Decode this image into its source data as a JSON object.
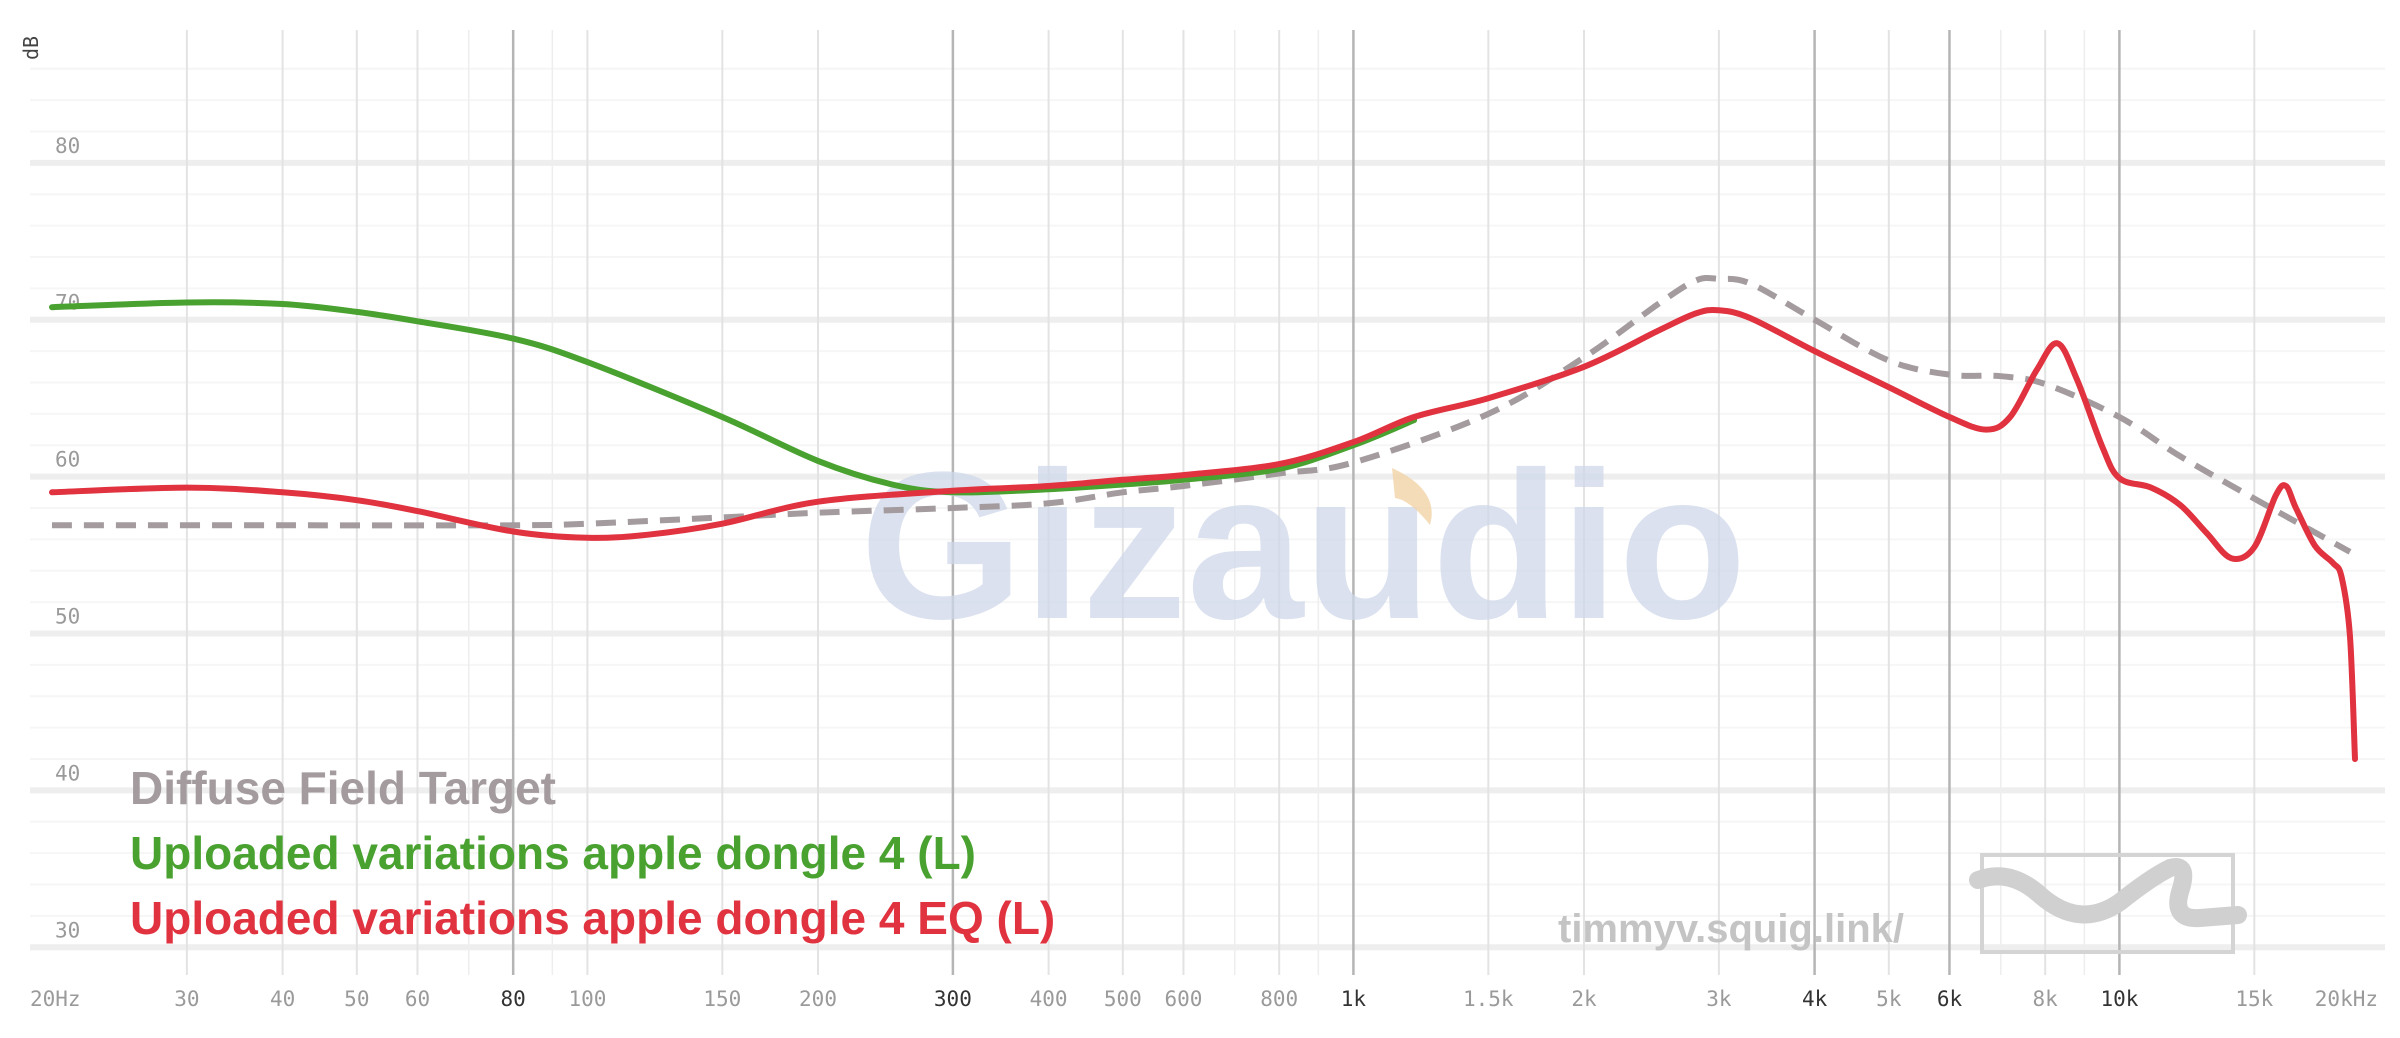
{
  "chart_data": {
    "type": "line",
    "ylabel": "dB",
    "x_scale": "log",
    "xlim": [
      20,
      20000
    ],
    "ylim": [
      29,
      87
    ],
    "yticks": [
      30,
      40,
      50,
      60,
      70,
      80
    ],
    "xticks": [
      {
        "value": 20,
        "label": "20Hz",
        "major": false
      },
      {
        "value": 30,
        "label": "30",
        "major": false
      },
      {
        "value": 40,
        "label": "40",
        "major": false
      },
      {
        "value": 50,
        "label": "50",
        "major": false
      },
      {
        "value": 60,
        "label": "60",
        "major": false
      },
      {
        "value": 80,
        "label": "80",
        "major": true
      },
      {
        "value": 100,
        "label": "100",
        "major": false
      },
      {
        "value": 150,
        "label": "150",
        "major": false
      },
      {
        "value": 200,
        "label": "200",
        "major": false
      },
      {
        "value": 300,
        "label": "300",
        "major": true
      },
      {
        "value": 400,
        "label": "400",
        "major": false
      },
      {
        "value": 500,
        "label": "500",
        "major": false
      },
      {
        "value": 600,
        "label": "600",
        "major": false
      },
      {
        "value": 800,
        "label": "800",
        "major": false
      },
      {
        "value": 1000,
        "label": "1k",
        "major": true
      },
      {
        "value": 1500,
        "label": "1.5k",
        "major": false
      },
      {
        "value": 2000,
        "label": "2k",
        "major": false
      },
      {
        "value": 3000,
        "label": "3k",
        "major": false
      },
      {
        "value": 4000,
        "label": "4k",
        "major": true
      },
      {
        "value": 5000,
        "label": "5k",
        "major": false
      },
      {
        "value": 6000,
        "label": "6k",
        "major": true
      },
      {
        "value": 8000,
        "label": "8k",
        "major": false
      },
      {
        "value": 10000,
        "label": "10k",
        "major": true
      },
      {
        "value": 15000,
        "label": "15k",
        "major": false
      },
      {
        "value": 20000,
        "label": "20kHz",
        "major": false
      }
    ],
    "minor_gridlines": [
      70,
      90,
      700,
      900,
      7000,
      9000
    ],
    "series": [
      {
        "name": "Diffuse Field Target",
        "color": "#a39b9e",
        "dash": true,
        "points": [
          [
            20,
            56.9
          ],
          [
            40,
            56.9
          ],
          [
            80,
            56.9
          ],
          [
            100,
            57.0
          ],
          [
            150,
            57.4
          ],
          [
            200,
            57.7
          ],
          [
            300,
            58.0
          ],
          [
            400,
            58.3
          ],
          [
            500,
            59.0
          ],
          [
            600,
            59.4
          ],
          [
            800,
            60.2
          ],
          [
            1000,
            60.9
          ],
          [
            1500,
            64.0
          ],
          [
            2000,
            67.6
          ],
          [
            2500,
            71.0
          ],
          [
            2800,
            72.5
          ],
          [
            3000,
            72.6
          ],
          [
            3300,
            72.3
          ],
          [
            4000,
            70.0
          ],
          [
            5000,
            67.4
          ],
          [
            6000,
            66.5
          ],
          [
            7000,
            66.4
          ],
          [
            8000,
            65.9
          ],
          [
            10000,
            63.8
          ],
          [
            12000,
            61.3
          ],
          [
            15000,
            58.6
          ],
          [
            20000,
            55.2
          ]
        ]
      },
      {
        "name": "Uploaded variations apple dongle 4 (L)",
        "color": "#49a130",
        "dash": false,
        "points": [
          [
            20,
            70.8
          ],
          [
            30,
            71.1
          ],
          [
            40,
            71.0
          ],
          [
            50,
            70.5
          ],
          [
            60,
            69.9
          ],
          [
            80,
            68.8
          ],
          [
            100,
            67.3
          ],
          [
            150,
            63.8
          ],
          [
            200,
            61.0
          ],
          [
            250,
            59.5
          ],
          [
            300,
            59.0
          ],
          [
            400,
            59.2
          ],
          [
            500,
            59.5
          ],
          [
            600,
            59.8
          ],
          [
            800,
            60.5
          ],
          [
            1000,
            62.0
          ],
          [
            1200,
            63.6
          ]
        ]
      },
      {
        "name": "Uploaded variations apple dongle 4 EQ (L)",
        "color": "#e0323f",
        "dash": false,
        "points": [
          [
            20,
            59.0
          ],
          [
            30,
            59.3
          ],
          [
            40,
            59.0
          ],
          [
            50,
            58.5
          ],
          [
            60,
            57.8
          ],
          [
            80,
            56.5
          ],
          [
            100,
            56.1
          ],
          [
            120,
            56.3
          ],
          [
            150,
            57.0
          ],
          [
            200,
            58.4
          ],
          [
            300,
            59.1
          ],
          [
            400,
            59.4
          ],
          [
            500,
            59.8
          ],
          [
            600,
            60.1
          ],
          [
            800,
            60.8
          ],
          [
            1000,
            62.2
          ],
          [
            1200,
            63.8
          ],
          [
            1500,
            65.0
          ],
          [
            2000,
            67.0
          ],
          [
            2500,
            69.3
          ],
          [
            2800,
            70.4
          ],
          [
            3000,
            70.6
          ],
          [
            3300,
            70.1
          ],
          [
            4000,
            68.0
          ],
          [
            5000,
            65.7
          ],
          [
            6000,
            63.8
          ],
          [
            6700,
            63.0
          ],
          [
            7200,
            63.8
          ],
          [
            7800,
            66.8
          ],
          [
            8300,
            68.5
          ],
          [
            8800,
            66.2
          ],
          [
            9500,
            61.9
          ],
          [
            10000,
            59.9
          ],
          [
            11000,
            59.3
          ],
          [
            12000,
            58.2
          ],
          [
            13000,
            56.4
          ],
          [
            14000,
            54.8
          ],
          [
            15000,
            55.5
          ],
          [
            16000,
            58.8
          ],
          [
            16500,
            59.4
          ],
          [
            17000,
            58.0
          ],
          [
            18000,
            55.6
          ],
          [
            19000,
            54.5
          ],
          [
            19500,
            53.6
          ],
          [
            20000,
            49.8
          ],
          [
            20300,
            42.0
          ]
        ]
      }
    ]
  },
  "legend": [
    {
      "label": "Diffuse Field Target",
      "color": "#a39b9e"
    },
    {
      "label": "Uploaded variations apple dongle 4 (L)",
      "color": "#49a130"
    },
    {
      "label": "Uploaded variations apple dongle 4 EQ (L)",
      "color": "#e0323f"
    }
  ],
  "watermark": "Gizaudio",
  "credit": "timmyv.squig.link/"
}
